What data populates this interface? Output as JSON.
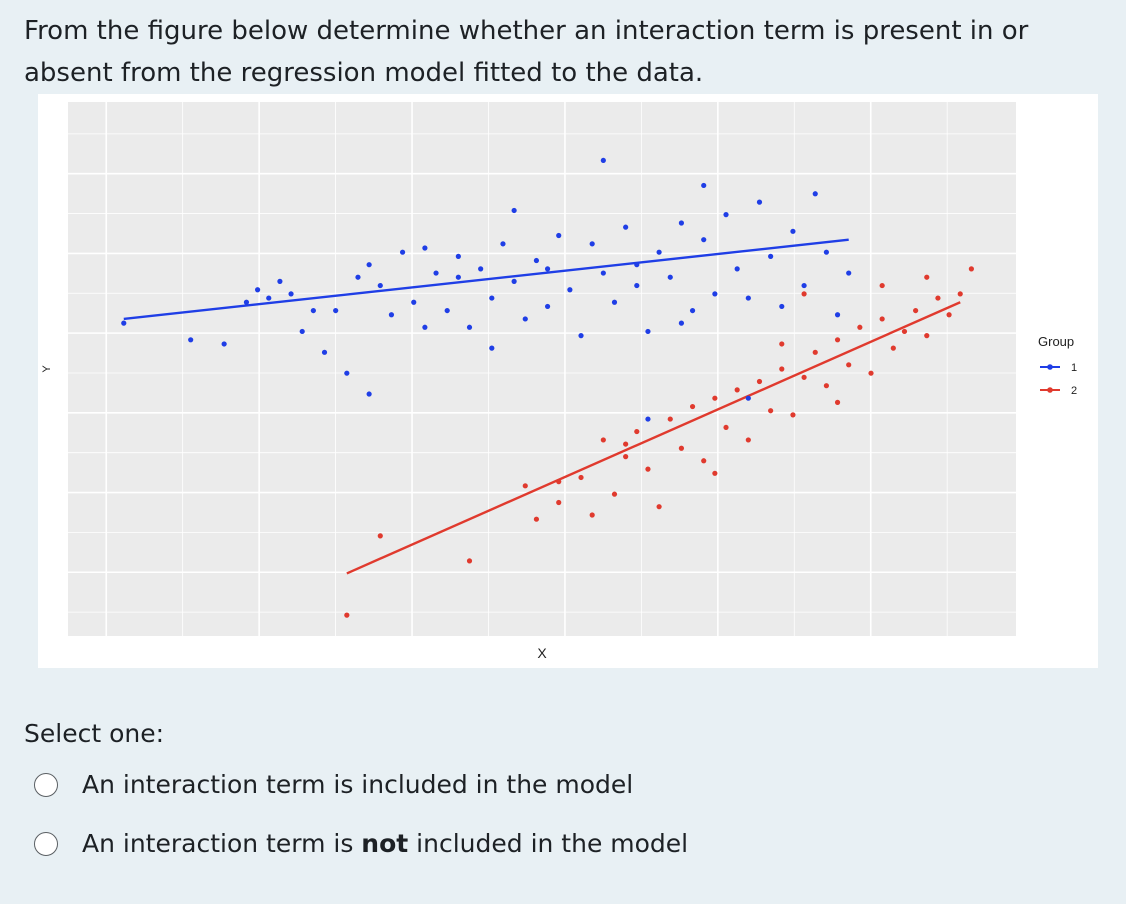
{
  "question": {
    "text": "From the figure below determine whether an interaction term is present in or absent from the regression model fitted to the data."
  },
  "chart_data": {
    "type": "scatter",
    "xlabel": "X",
    "ylabel": "Y",
    "grid": true,
    "legend": {
      "title": "Group",
      "placement": "right"
    },
    "series": [
      {
        "name": "1",
        "color": "#1f3ee6",
        "fit_line": {
          "x": [
            0.0,
            6.5
          ],
          "y": [
            5.8,
            7.7
          ]
        },
        "points": [
          [
            0.0,
            5.7
          ],
          [
            0.6,
            5.3
          ],
          [
            0.9,
            5.2
          ],
          [
            1.1,
            6.2
          ],
          [
            1.2,
            6.5
          ],
          [
            1.3,
            6.3
          ],
          [
            1.4,
            6.7
          ],
          [
            1.5,
            6.4
          ],
          [
            1.6,
            5.5
          ],
          [
            1.8,
            5.0
          ],
          [
            1.9,
            6.0
          ],
          [
            2.0,
            4.5
          ],
          [
            2.1,
            6.8
          ],
          [
            2.2,
            7.1
          ],
          [
            2.3,
            6.6
          ],
          [
            2.4,
            5.9
          ],
          [
            2.5,
            7.4
          ],
          [
            2.6,
            6.2
          ],
          [
            2.7,
            7.5
          ],
          [
            2.8,
            6.9
          ],
          [
            2.9,
            6.0
          ],
          [
            3.0,
            7.3
          ],
          [
            3.1,
            5.6
          ],
          [
            3.2,
            7.0
          ],
          [
            3.3,
            6.3
          ],
          [
            3.4,
            7.6
          ],
          [
            3.5,
            6.7
          ],
          [
            3.6,
            5.8
          ],
          [
            3.7,
            7.2
          ],
          [
            3.8,
            6.1
          ],
          [
            3.9,
            7.8
          ],
          [
            4.0,
            6.5
          ],
          [
            4.1,
            5.4
          ],
          [
            4.2,
            7.6
          ],
          [
            4.3,
            6.9
          ],
          [
            4.4,
            6.2
          ],
          [
            4.5,
            8.0
          ],
          [
            4.6,
            6.6
          ],
          [
            4.7,
            5.5
          ],
          [
            4.8,
            7.4
          ],
          [
            4.9,
            6.8
          ],
          [
            5.0,
            8.1
          ],
          [
            5.1,
            6.0
          ],
          [
            5.2,
            7.7
          ],
          [
            5.3,
            6.4
          ],
          [
            5.4,
            8.3
          ],
          [
            5.5,
            7.0
          ],
          [
            5.6,
            6.3
          ],
          [
            5.7,
            8.6
          ],
          [
            5.8,
            7.3
          ],
          [
            5.9,
            6.1
          ],
          [
            6.0,
            7.9
          ],
          [
            6.1,
            6.6
          ],
          [
            6.2,
            8.8
          ],
          [
            6.3,
            7.4
          ],
          [
            6.4,
            5.9
          ],
          [
            6.5,
            6.9
          ],
          [
            2.7,
            5.6
          ],
          [
            3.5,
            8.4
          ],
          [
            4.3,
            9.6
          ],
          [
            2.2,
            4.0
          ],
          [
            4.7,
            3.4
          ],
          [
            5.2,
            9.0
          ],
          [
            5.6,
            3.9
          ],
          [
            3.0,
            6.8
          ],
          [
            3.8,
            7.0
          ],
          [
            4.6,
            7.1
          ],
          [
            1.7,
            6.0
          ],
          [
            5.0,
            5.7
          ],
          [
            3.3,
            5.1
          ]
        ]
      },
      {
        "name": "2",
        "color": "#e03a2e",
        "fit_line": {
          "x": [
            2.0,
            7.5
          ],
          "y": [
            -0.3,
            6.2
          ]
        },
        "points": [
          [
            2.0,
            -1.3
          ],
          [
            2.3,
            0.6
          ],
          [
            3.1,
            0.0
          ],
          [
            3.6,
            1.8
          ],
          [
            3.7,
            1.0
          ],
          [
            3.9,
            1.9
          ],
          [
            4.1,
            2.0
          ],
          [
            4.2,
            1.1
          ],
          [
            4.3,
            2.9
          ],
          [
            4.4,
            1.6
          ],
          [
            4.5,
            2.5
          ],
          [
            4.6,
            3.1
          ],
          [
            4.7,
            2.2
          ],
          [
            4.8,
            1.3
          ],
          [
            4.9,
            3.4
          ],
          [
            5.0,
            2.7
          ],
          [
            5.1,
            3.7
          ],
          [
            5.2,
            2.4
          ],
          [
            5.3,
            3.9
          ],
          [
            5.4,
            3.2
          ],
          [
            5.5,
            4.1
          ],
          [
            5.6,
            2.9
          ],
          [
            5.7,
            4.3
          ],
          [
            5.8,
            3.6
          ],
          [
            5.9,
            4.6
          ],
          [
            6.0,
            3.5
          ],
          [
            6.1,
            4.4
          ],
          [
            6.2,
            5.0
          ],
          [
            6.3,
            4.2
          ],
          [
            6.4,
            5.3
          ],
          [
            6.5,
            4.7
          ],
          [
            6.6,
            5.6
          ],
          [
            6.7,
            4.5
          ],
          [
            6.8,
            5.8
          ],
          [
            6.9,
            5.1
          ],
          [
            7.0,
            5.5
          ],
          [
            7.1,
            6.0
          ],
          [
            7.2,
            5.4
          ],
          [
            7.3,
            6.3
          ],
          [
            7.4,
            5.9
          ],
          [
            7.5,
            6.4
          ],
          [
            7.6,
            7.0
          ],
          [
            6.8,
            6.6
          ],
          [
            5.9,
            5.2
          ],
          [
            4.5,
            2.8
          ],
          [
            5.3,
            2.1
          ],
          [
            6.4,
            3.8
          ],
          [
            7.2,
            6.8
          ],
          [
            6.1,
            6.4
          ],
          [
            3.9,
            1.4
          ]
        ]
      }
    ],
    "xlim": [
      -0.5,
      8.0
    ],
    "ylim": [
      -1.8,
      11.0
    ]
  },
  "options": {
    "prompt": "Select one:",
    "choices": [
      {
        "parts": [
          {
            "text": "An interaction term is included in the model",
            "bold": false
          }
        ]
      },
      {
        "parts": [
          {
            "text": "An interaction term is ",
            "bold": false
          },
          {
            "text": "not",
            "bold": true
          },
          {
            "text": " included in the model",
            "bold": false
          }
        ]
      }
    ]
  }
}
